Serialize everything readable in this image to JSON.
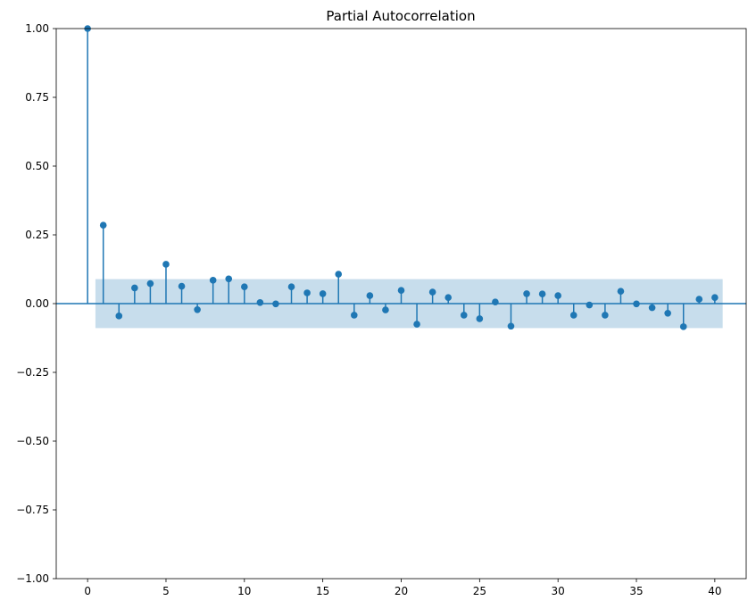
{
  "chart_data": {
    "type": "stem",
    "title": "Partial Autocorrelation",
    "xlabel": "",
    "ylabel": "",
    "xlim": [
      -2,
      42
    ],
    "ylim": [
      -1.0,
      1.0
    ],
    "x_ticks": [
      0,
      5,
      10,
      15,
      20,
      25,
      30,
      35,
      40
    ],
    "x_tick_labels": [
      "0",
      "5",
      "10",
      "15",
      "20",
      "25",
      "30",
      "35",
      "40"
    ],
    "y_ticks": [
      1.0,
      0.75,
      0.5,
      0.25,
      0.0,
      -0.25,
      -0.5,
      -0.75,
      -1.0
    ],
    "y_tick_labels": [
      "1.00",
      "0.75",
      "0.50",
      "0.25",
      "0.00",
      "−0.25",
      "−0.50",
      "−0.75",
      "−1.00"
    ],
    "grid": false,
    "confidence_band": {
      "x_range": [
        0.5,
        40.5
      ],
      "lower": -0.089,
      "upper": 0.089
    },
    "lags": [
      0,
      1,
      2,
      3,
      4,
      5,
      6,
      7,
      8,
      9,
      10,
      11,
      12,
      13,
      14,
      15,
      16,
      17,
      18,
      19,
      20,
      21,
      22,
      23,
      24,
      25,
      26,
      27,
      28,
      29,
      30,
      31,
      32,
      33,
      34,
      35,
      36,
      37,
      38,
      39,
      40
    ],
    "values": [
      1.0,
      0.285,
      -0.045,
      0.057,
      0.073,
      0.143,
      0.063,
      -0.022,
      0.085,
      0.09,
      0.061,
      0.004,
      -0.001,
      0.061,
      0.039,
      0.036,
      0.107,
      -0.042,
      0.029,
      -0.023,
      0.048,
      -0.075,
      0.042,
      0.022,
      -0.042,
      -0.055,
      0.006,
      -0.082,
      0.036,
      0.035,
      0.029,
      -0.042,
      -0.005,
      -0.042,
      0.045,
      -0.001,
      -0.015,
      -0.035,
      -0.084,
      0.016,
      0.022
    ]
  },
  "colors": {
    "stem": "#1f77b4",
    "band": "#1f77b4",
    "axes": "#000000",
    "background": "#ffffff"
  }
}
